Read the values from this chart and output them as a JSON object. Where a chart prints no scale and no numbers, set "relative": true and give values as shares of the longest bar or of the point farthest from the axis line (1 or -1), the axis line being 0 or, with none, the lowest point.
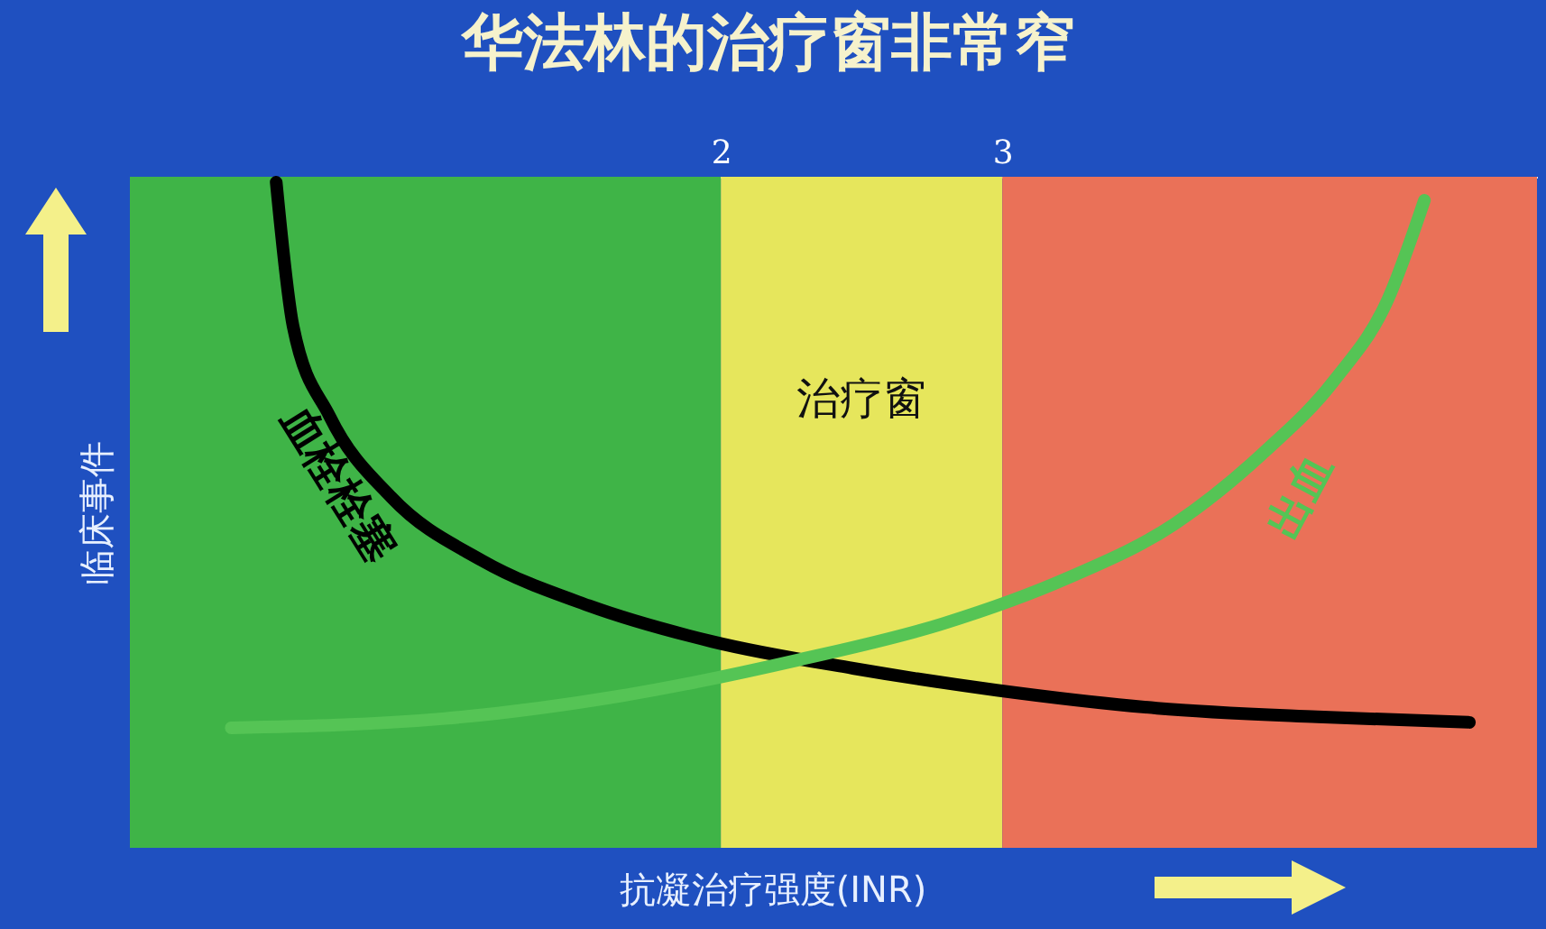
{
  "chart_data": {
    "type": "line",
    "title": "华法林的治疗窗非常窄",
    "xlabel": "抗凝治疗强度(INR)",
    "ylabel": "临床事件",
    "relative": true,
    "xlim": [
      -0.1,
      4.9
    ],
    "xticks": [
      2,
      3
    ],
    "tick_labels": "x",
    "grid": false,
    "line_style": "solid",
    "marker": "none",
    "bands": [
      {
        "axis": "x",
        "from": -0.1,
        "to": 2,
        "color": "#3fb447"
      },
      {
        "axis": "x",
        "from": 2,
        "to": 3,
        "color": "#e6e65c",
        "label": "治疗窗"
      },
      {
        "axis": "x",
        "from": 3,
        "to": 4.9,
        "color": "#ea7158"
      }
    ],
    "series": [
      {
        "name": "血栓栓塞",
        "color": "#000000",
        "x": [
          0.42,
          0.48,
          0.61,
          0.83,
          1.15,
          1.53,
          1.97,
          2.47,
          2.98,
          3.55,
          4.12,
          4.66
        ],
        "values": [
          1.0,
          0.736,
          0.571,
          0.422,
          0.307,
          0.224,
          0.158,
          0.109,
          0.069,
          0.036,
          0.02,
          0.01
        ]
      },
      {
        "name": "出血",
        "color": "#55c455",
        "x": [
          0.26,
          1.02,
          1.65,
          2.28,
          2.79,
          3.23,
          3.61,
          3.93,
          4.18,
          4.37,
          4.5
        ],
        "values": [
          0,
          0.017,
          0.059,
          0.125,
          0.191,
          0.274,
          0.373,
          0.505,
          0.637,
          0.785,
          0.967
        ]
      }
    ]
  }
}
